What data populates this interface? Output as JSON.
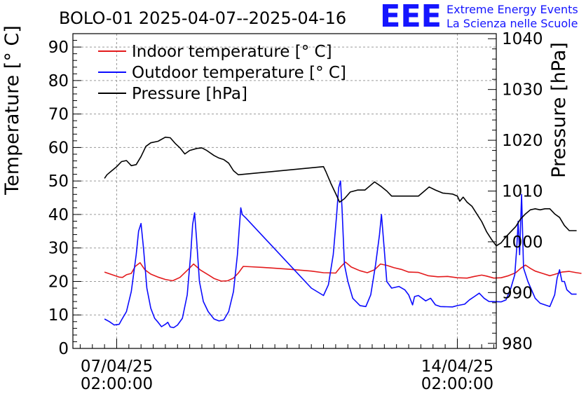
{
  "header": {
    "title": "BOLO-01 2025-04-07--2025-04-16",
    "logo_mark": "EEE",
    "logo_line1": "Extreme Energy Events",
    "logo_line2": "La Scienza nelle Scuole"
  },
  "chart_data": {
    "type": "line",
    "title": "BOLO-01 2025-04-07--2025-04-16",
    "ylabel": "Temperature [° C]",
    "y2label": "Pressure [hPa]",
    "ylim": [
      0,
      94
    ],
    "y2lim": [
      979,
      1041
    ],
    "yticks": [
      0,
      10,
      20,
      30,
      40,
      50,
      60,
      70,
      80,
      90
    ],
    "y2ticks": [
      980,
      990,
      1000,
      1010,
      1020,
      1030,
      1040
    ],
    "xlim_days": [
      -0.9,
      7.8
    ],
    "xticks": [
      {
        "day": 0,
        "date": "07/04/25",
        "time": "02:00:00"
      },
      {
        "day": 7,
        "date": "14/04/25",
        "time": "02:00:00"
      }
    ],
    "grid": true,
    "legend_placement": "top-left",
    "colors": {
      "indoor": "#e31a1c",
      "outdoor": "#0b0bff",
      "pressure": "#000000"
    },
    "series": [
      {
        "name": "Indoor temperature [° C]",
        "axis": "left",
        "color": "#e31a1c",
        "points": [
          [
            -0.25,
            22.8
          ],
          [
            -0.05,
            21.8
          ],
          [
            0.05,
            21.3
          ],
          [
            0.12,
            21.2
          ],
          [
            0.2,
            22.0
          ],
          [
            0.3,
            22.4
          ],
          [
            0.38,
            24.5
          ],
          [
            0.48,
            25.6
          ],
          [
            0.58,
            23.5
          ],
          [
            0.7,
            22.2
          ],
          [
            0.85,
            21.3
          ],
          [
            1.0,
            20.6
          ],
          [
            1.15,
            20.2
          ],
          [
            1.3,
            21.2
          ],
          [
            1.45,
            23.3
          ],
          [
            1.58,
            25.2
          ],
          [
            1.72,
            23.4
          ],
          [
            1.88,
            22.0
          ],
          [
            2.0,
            20.9
          ],
          [
            2.15,
            20.1
          ],
          [
            2.28,
            20.2
          ],
          [
            2.4,
            21.0
          ],
          [
            2.5,
            22.5
          ],
          [
            2.6,
            24.5
          ],
          [
            2.75,
            24.4
          ],
          [
            3.0,
            24.2
          ],
          [
            3.5,
            23.7
          ],
          [
            4.0,
            23.1
          ],
          [
            4.25,
            22.6
          ],
          [
            4.5,
            22.5
          ],
          [
            4.6,
            24.3
          ],
          [
            4.7,
            25.8
          ],
          [
            4.82,
            24.3
          ],
          [
            5.0,
            23.2
          ],
          [
            5.15,
            22.6
          ],
          [
            5.3,
            23.5
          ],
          [
            5.42,
            25.2
          ],
          [
            5.55,
            24.8
          ],
          [
            5.7,
            24.1
          ],
          [
            5.85,
            23.6
          ],
          [
            6.0,
            22.8
          ],
          [
            6.2,
            22.7
          ],
          [
            6.4,
            21.7
          ],
          [
            6.6,
            21.4
          ],
          [
            6.8,
            21.5
          ],
          [
            7.0,
            21.1
          ],
          [
            7.2,
            21.0
          ],
          [
            7.35,
            21.5
          ],
          [
            7.5,
            21.9
          ],
          [
            7.6,
            21.6
          ],
          [
            7.75,
            21.0
          ],
          [
            7.9,
            21.1
          ],
          [
            8.05,
            21.7
          ],
          [
            8.2,
            22.6
          ],
          [
            8.3,
            23.9
          ],
          [
            8.4,
            24.9
          ],
          [
            8.5,
            23.9
          ],
          [
            8.6,
            23.1
          ],
          [
            8.75,
            22.4
          ],
          [
            8.9,
            21.7
          ],
          [
            9.0,
            22.1
          ],
          [
            9.15,
            22.8
          ],
          [
            9.3,
            23.0
          ],
          [
            9.45,
            22.6
          ],
          [
            9.55,
            22.4
          ]
        ]
      },
      {
        "name": "Outdoor temperature [° C]",
        "axis": "left",
        "color": "#0b0bff",
        "points": [
          [
            -0.25,
            8.8
          ],
          [
            -0.15,
            8.0
          ],
          [
            -0.05,
            7.0
          ],
          [
            0.05,
            7.2
          ],
          [
            0.1,
            8.5
          ],
          [
            0.2,
            11.0
          ],
          [
            0.3,
            17.0
          ],
          [
            0.4,
            28.0
          ],
          [
            0.45,
            35.0
          ],
          [
            0.5,
            37.3
          ],
          [
            0.55,
            30.0
          ],
          [
            0.62,
            18.0
          ],
          [
            0.7,
            12.0
          ],
          [
            0.78,
            9.0
          ],
          [
            0.85,
            7.8
          ],
          [
            0.92,
            6.5
          ],
          [
            1.0,
            7.2
          ],
          [
            1.05,
            7.8
          ],
          [
            1.1,
            6.4
          ],
          [
            1.17,
            6.2
          ],
          [
            1.25,
            7.0
          ],
          [
            1.35,
            9.0
          ],
          [
            1.45,
            16.0
          ],
          [
            1.52,
            28.0
          ],
          [
            1.56,
            37.0
          ],
          [
            1.6,
            40.5
          ],
          [
            1.64,
            33.0
          ],
          [
            1.7,
            20.0
          ],
          [
            1.78,
            14.0
          ],
          [
            1.88,
            11.0
          ],
          [
            2.0,
            8.8
          ],
          [
            2.1,
            8.2
          ],
          [
            2.2,
            8.5
          ],
          [
            2.3,
            11.0
          ],
          [
            2.4,
            17.0
          ],
          [
            2.48,
            28.0
          ],
          [
            2.52,
            36.0
          ],
          [
            2.55,
            42.0
          ],
          [
            2.58,
            40.0
          ],
          [
            2.65,
            39.0
          ],
          [
            4.0,
            18.0
          ],
          [
            4.25,
            15.8
          ],
          [
            4.35,
            19.0
          ],
          [
            4.45,
            28.0
          ],
          [
            4.52,
            40.0
          ],
          [
            4.56,
            48.0
          ],
          [
            4.6,
            50.0
          ],
          [
            4.63,
            42.0
          ],
          [
            4.68,
            25.0
          ],
          [
            4.75,
            20.0
          ],
          [
            4.85,
            15.0
          ],
          [
            5.0,
            12.8
          ],
          [
            5.12,
            12.5
          ],
          [
            5.22,
            16.0
          ],
          [
            5.32,
            25.0
          ],
          [
            5.4,
            34.0
          ],
          [
            5.44,
            40.0
          ],
          [
            5.48,
            33.0
          ],
          [
            5.55,
            20.0
          ],
          [
            5.65,
            18.0
          ],
          [
            5.8,
            18.5
          ],
          [
            5.92,
            17.5
          ],
          [
            6.0,
            16.0
          ],
          [
            6.08,
            13.0
          ],
          [
            6.12,
            15.5
          ],
          [
            6.2,
            15.8
          ],
          [
            6.35,
            14.2
          ],
          [
            6.45,
            15.0
          ],
          [
            6.55,
            13.0
          ],
          [
            6.65,
            12.5
          ],
          [
            6.9,
            12.4
          ],
          [
            7.0,
            12.8
          ],
          [
            7.15,
            13.2
          ],
          [
            7.25,
            14.5
          ],
          [
            7.35,
            15.5
          ],
          [
            7.45,
            16.5
          ],
          [
            7.55,
            15.0
          ],
          [
            7.65,
            14.0
          ],
          [
            7.9,
            13.9
          ],
          [
            8.0,
            14.5
          ],
          [
            8.1,
            18.0
          ],
          [
            8.18,
            22.0
          ],
          [
            8.22,
            30.0
          ],
          [
            8.25,
            38.0
          ],
          [
            8.28,
            28.0
          ],
          [
            8.32,
            46.0
          ],
          [
            8.36,
            24.0
          ],
          [
            8.45,
            20.0
          ],
          [
            8.6,
            15.0
          ],
          [
            8.7,
            13.5
          ],
          [
            8.8,
            13.0
          ],
          [
            8.9,
            12.5
          ],
          [
            9.0,
            16.0
          ],
          [
            9.05,
            21.0
          ],
          [
            9.1,
            23.5
          ],
          [
            9.15,
            20.0
          ],
          [
            9.2,
            20.0
          ],
          [
            9.25,
            17.5
          ],
          [
            9.35,
            16.2
          ],
          [
            9.45,
            16.2
          ]
        ]
      },
      {
        "name": "Pressure [hPa]",
        "axis": "right",
        "color": "#000000",
        "points": [
          [
            -0.25,
            1012.5
          ],
          [
            -0.2,
            1013.2
          ],
          [
            -0.1,
            1014.0
          ],
          [
            0.0,
            1014.8
          ],
          [
            0.1,
            1015.8
          ],
          [
            0.2,
            1016.0
          ],
          [
            0.3,
            1015.0
          ],
          [
            0.4,
            1015.2
          ],
          [
            0.5,
            1016.8
          ],
          [
            0.6,
            1018.8
          ],
          [
            0.7,
            1019.5
          ],
          [
            0.85,
            1019.8
          ],
          [
            1.0,
            1020.6
          ],
          [
            1.1,
            1020.5
          ],
          [
            1.2,
            1019.4
          ],
          [
            1.3,
            1018.5
          ],
          [
            1.4,
            1017.3
          ],
          [
            1.5,
            1018.0
          ],
          [
            1.65,
            1018.4
          ],
          [
            1.75,
            1018.5
          ],
          [
            1.85,
            1018.0
          ],
          [
            2.0,
            1017.0
          ],
          [
            2.1,
            1016.5
          ],
          [
            2.2,
            1016.2
          ],
          [
            2.3,
            1015.5
          ],
          [
            2.4,
            1014.0
          ],
          [
            2.5,
            1013.2
          ],
          [
            4.25,
            1014.8
          ],
          [
            4.3,
            1013.8
          ],
          [
            4.4,
            1011.5
          ],
          [
            4.5,
            1009.5
          ],
          [
            4.58,
            1007.8
          ],
          [
            4.68,
            1008.5
          ],
          [
            4.8,
            1009.8
          ],
          [
            4.95,
            1010.2
          ],
          [
            5.1,
            1010.2
          ],
          [
            5.2,
            1011.0
          ],
          [
            5.3,
            1011.8
          ],
          [
            5.42,
            1011.0
          ],
          [
            5.55,
            1010.0
          ],
          [
            5.65,
            1009.0
          ],
          [
            5.8,
            1009.0
          ],
          [
            6.0,
            1009.0
          ],
          [
            6.2,
            1009.0
          ],
          [
            6.3,
            1009.8
          ],
          [
            6.42,
            1010.8
          ],
          [
            6.55,
            1010.2
          ],
          [
            6.7,
            1009.6
          ],
          [
            6.9,
            1009.4
          ],
          [
            7.0,
            1009.0
          ],
          [
            7.05,
            1008.0
          ],
          [
            7.12,
            1008.8
          ],
          [
            7.2,
            1007.8
          ],
          [
            7.3,
            1007.0
          ],
          [
            7.4,
            1005.5
          ],
          [
            7.5,
            1004.0
          ],
          [
            7.6,
            1002.0
          ],
          [
            7.7,
            1000.5
          ],
          [
            7.8,
            999.2
          ],
          [
            7.9,
            999.8
          ],
          [
            8.0,
            1001.0
          ],
          [
            8.1,
            1002.0
          ],
          [
            8.2,
            1003.0
          ],
          [
            8.3,
            1004.5
          ],
          [
            8.4,
            1005.5
          ],
          [
            8.5,
            1006.3
          ],
          [
            8.6,
            1006.5
          ],
          [
            8.7,
            1006.3
          ],
          [
            8.8,
            1006.5
          ],
          [
            8.9,
            1006.5
          ],
          [
            9.0,
            1005.5
          ],
          [
            9.1,
            1004.8
          ],
          [
            9.2,
            1003.2
          ],
          [
            9.3,
            1002.2
          ],
          [
            9.45,
            1002.2
          ]
        ]
      }
    ]
  }
}
